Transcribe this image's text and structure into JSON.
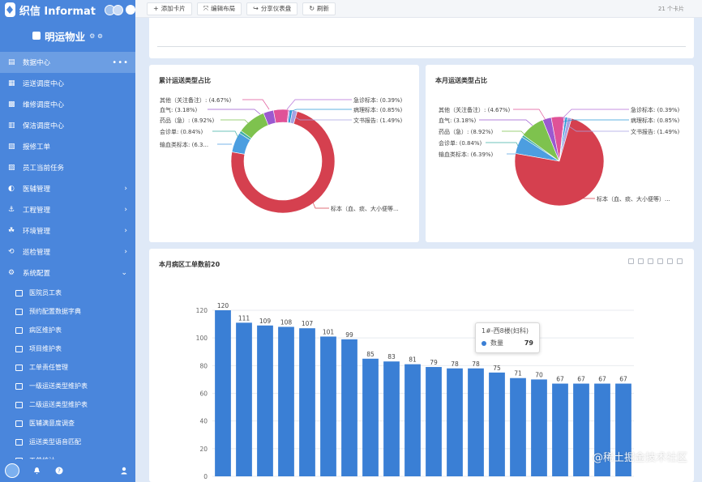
{
  "app": {
    "name": "织信 Informat",
    "org": "明运物业",
    "org_extra": "⚙ ⊙"
  },
  "sidebar": {
    "items": [
      {
        "label": "数据中心",
        "active": true
      },
      {
        "label": "运送调度中心"
      },
      {
        "label": "维修调度中心"
      },
      {
        "label": "保洁调度中心"
      },
      {
        "label": "报修工单"
      },
      {
        "label": "员工当前任务"
      },
      {
        "label": "医辅管理",
        "caret": "›"
      },
      {
        "label": "工程管理",
        "caret": "›"
      },
      {
        "label": "环境管理",
        "caret": "›"
      },
      {
        "label": "巡检管理",
        "caret": "›"
      },
      {
        "label": "系统配置",
        "caret": "⌄"
      }
    ],
    "sub_items": [
      "医院员工表",
      "预约配置数据字典",
      "病区维护表",
      "项目维护表",
      "工单责任管理",
      "一级运送类型维护表",
      "二级运送类型维护表",
      "医辅满意度调查",
      "运送类型语音匹配",
      "工单统计"
    ],
    "more_icon": "•••"
  },
  "toolbar": {
    "add_card": "添加卡片",
    "edit_layout": "编辑布局",
    "share": "分享仪表盘",
    "refresh": "刷新",
    "card_count": "21 个卡片"
  },
  "pie1": {
    "title": "累计运送类型占比",
    "labels": {
      "other": "其他（关注备注）: (4.67%)",
      "blood": "血气: (3.18%)",
      "drug": "药品（急）: (8.92%)",
      "consult": "会诊单: (0.84%)",
      "transfusion": "输血类标本: (6.3...",
      "emergency": "急诊标本: (0.39%)",
      "pathology": "病理标本: (0.85%)",
      "document": "文书报告: (1.49%)",
      "specimen": "标本（血、痰、大小便等..."
    }
  },
  "pie2": {
    "title": "本月运送类型占比",
    "labels": {
      "other": "其他（关注备注）: (4.67%)",
      "blood": "血气: (3.18%)",
      "drug": "药品（急）: (8.92%)",
      "consult": "会诊单: (0.84%)",
      "transfusion": "输血类标本: (6.39%)",
      "emergency": "急诊标本: (0.39%)",
      "pathology": "病理标本: (0.85%)",
      "document": "文书报告: (1.49%)",
      "specimen": "标本（血、痰、大小便等）..."
    }
  },
  "tooltip": {
    "title": "1#-西8楼(妇科)",
    "series": "数量",
    "value": "79"
  },
  "watermark": "@稀土掘金技术社区",
  "colors": {
    "sidebar": "#4a86dc",
    "bar": "#3a7fd5",
    "pie": [
      "#d5404f",
      "#4c9ee0",
      "#3fb0a5",
      "#7ec24e",
      "#9b59d0",
      "#e05297",
      "#b56fd8",
      "#2f9ad6",
      "#a7a3e3"
    ]
  },
  "chart_data": [
    {
      "type": "pie",
      "title": "累计运送类型占比",
      "donut": true,
      "slices": [
        {
          "name": "标本（血、痰、大小便等...",
          "value": 73.52
        },
        {
          "name": "输血类标本",
          "value": 6.3
        },
        {
          "name": "会诊单",
          "value": 0.84
        },
        {
          "name": "药品（急）",
          "value": 8.92
        },
        {
          "name": "血气",
          "value": 3.18
        },
        {
          "name": "其他（关注备注）",
          "value": 4.67
        },
        {
          "name": "急诊标本",
          "value": 0.39
        },
        {
          "name": "病理标本",
          "value": 0.85
        },
        {
          "name": "文书报告",
          "value": 1.49
        }
      ]
    },
    {
      "type": "pie",
      "title": "本月运送类型占比",
      "donut": false,
      "slices": [
        {
          "name": "标本（血、痰、大小便等）...",
          "value": 73.43
        },
        {
          "name": "输血类标本",
          "value": 6.39
        },
        {
          "name": "会诊单",
          "value": 0.84
        },
        {
          "name": "药品（急）",
          "value": 8.92
        },
        {
          "name": "血气",
          "value": 3.18
        },
        {
          "name": "其他（关注备注）",
          "value": 4.67
        },
        {
          "name": "急诊标本",
          "value": 0.39
        },
        {
          "name": "病理标本",
          "value": 0.85
        },
        {
          "name": "文书报告",
          "value": 1.49
        }
      ]
    },
    {
      "type": "bar",
      "title": "本月病区工单数前20",
      "values": [
        120,
        111,
        109,
        108,
        107,
        101,
        99,
        85,
        83,
        81,
        79,
        78,
        78,
        75,
        71,
        70,
        67,
        67,
        67,
        67
      ],
      "ylim": [
        0,
        120
      ],
      "yticks": [
        0,
        20,
        40,
        60,
        80,
        100,
        120
      ],
      "grid": true,
      "series": [
        {
          "name": "数量",
          "values": [
            120,
            111,
            109,
            108,
            107,
            101,
            99,
            85,
            83,
            81,
            79,
            78,
            78,
            75,
            71,
            70,
            67,
            67,
            67,
            67
          ]
        }
      ]
    }
  ]
}
